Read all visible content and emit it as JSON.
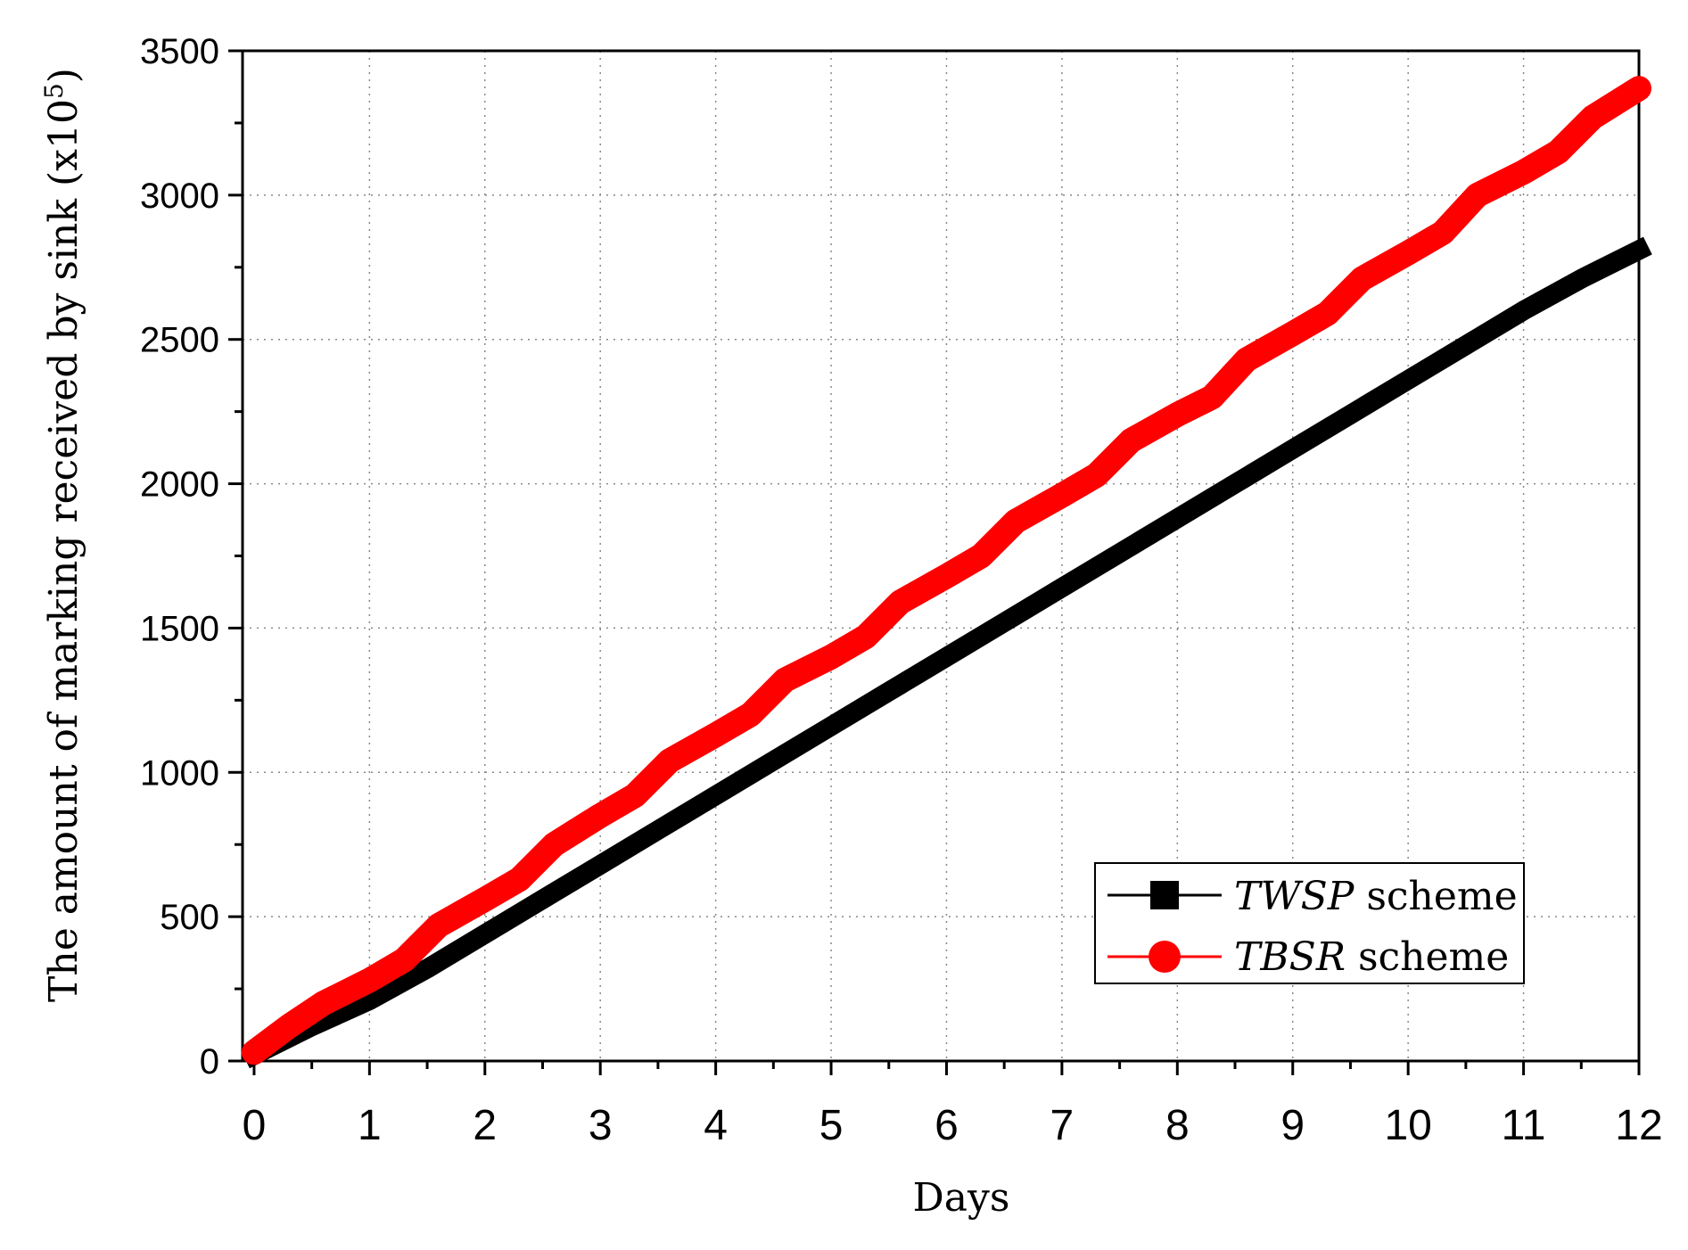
{
  "chart_data": {
    "type": "line",
    "xlabel": "Days",
    "ylabel": {
      "text": "The amount of marking received by sink (x10",
      "superscript": "5",
      "suffix": ")"
    },
    "xlim": [
      -0.1,
      12
    ],
    "ylim": [
      0,
      3500
    ],
    "x_ticks": [
      0,
      1,
      2,
      3,
      4,
      5,
      6,
      7,
      8,
      9,
      10,
      11,
      12
    ],
    "y_ticks": [
      0,
      500,
      1000,
      1500,
      2000,
      2500,
      3000,
      3500
    ],
    "grid": true,
    "legend_position": "bottom-right",
    "series": [
      {
        "legend_italic": "TWSP",
        "legend_rest": " scheme",
        "color": "#000000",
        "marker": "square",
        "x": [
          0,
          0.5,
          1,
          1.5,
          2,
          2.5,
          3,
          3.5,
          4,
          4.5,
          5,
          5.5,
          6,
          6.5,
          7,
          7.5,
          8,
          8.5,
          9,
          9.5,
          10,
          10.5,
          11,
          11.5,
          12
        ],
        "values": [
          20,
          120,
          210,
          320,
          440,
          560,
          680,
          800,
          920,
          1040,
          1160,
          1280,
          1400,
          1520,
          1640,
          1760,
          1880,
          2000,
          2120,
          2240,
          2360,
          2480,
          2600,
          2710,
          2810
        ]
      },
      {
        "legend_italic": "TBSR",
        "legend_rest": " scheme",
        "color": "#ff0000",
        "marker": "circle",
        "x": [
          0,
          0.3,
          0.6,
          1,
          1.3,
          1.6,
          2,
          2.3,
          2.6,
          3,
          3.3,
          3.6,
          4,
          4.3,
          4.6,
          5,
          5.3,
          5.6,
          6,
          6.3,
          6.6,
          7,
          7.3,
          7.6,
          8,
          8.3,
          8.6,
          9,
          9.3,
          9.6,
          10,
          10.3,
          10.6,
          11,
          11.3,
          11.6,
          12
        ],
        "values": [
          30,
          120,
          200,
          280,
          350,
          470,
          560,
          630,
          750,
          850,
          920,
          1040,
          1130,
          1200,
          1320,
          1400,
          1470,
          1590,
          1680,
          1750,
          1870,
          1960,
          2030,
          2150,
          2240,
          2300,
          2430,
          2520,
          2590,
          2710,
          2800,
          2870,
          3000,
          3080,
          3150,
          3270,
          3370
        ]
      }
    ]
  }
}
